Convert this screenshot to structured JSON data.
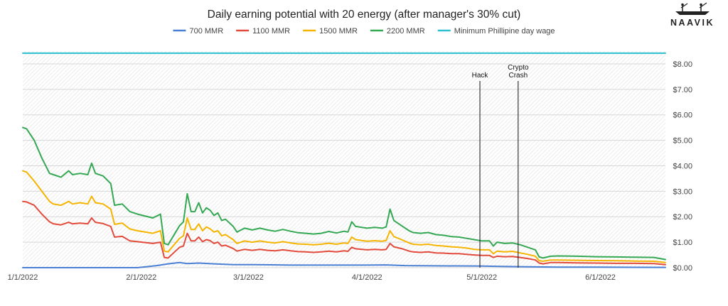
{
  "brand": {
    "name": "NAAVIK",
    "color": "#222222"
  },
  "chart_data": {
    "type": "line",
    "title": "Daily earning potential with 20 energy (after manager's 30% cut)",
    "xlabel": "",
    "ylabel": "",
    "x_tick_labels": [
      "1/1/2022",
      "2/1/2022",
      "3/1/2022",
      "4/1/2022",
      "5/1/2022",
      "6/1/2022"
    ],
    "x_tick_days": [
      0,
      31,
      59,
      90,
      120,
      151
    ],
    "x_range_days": [
      0,
      168
    ],
    "ylim": [
      0,
      8.5
    ],
    "y_ticks": [
      0,
      1,
      2,
      3,
      4,
      5,
      6,
      7,
      8
    ],
    "y_tick_labels": [
      "$0.00",
      "$1.00",
      "$2.00",
      "$3.00",
      "$4.00",
      "$5.00",
      "$6.00",
      "$7.00",
      "$8.00"
    ],
    "y_axis_position": "right",
    "legend_position": "top",
    "grid": true,
    "series": [
      {
        "name": "700 MMR",
        "color": "#4a7fd4",
        "points": [
          [
            0,
            0
          ],
          [
            30,
            0
          ],
          [
            32,
            0.03
          ],
          [
            35,
            0.08
          ],
          [
            38,
            0.15
          ],
          [
            41,
            0.2
          ],
          [
            43,
            0.16
          ],
          [
            46,
            0.18
          ],
          [
            50,
            0.15
          ],
          [
            55,
            0.12
          ],
          [
            60,
            0.12
          ],
          [
            70,
            0.1
          ],
          [
            80,
            0.1
          ],
          [
            90,
            0.1
          ],
          [
            95,
            0.11
          ],
          [
            100,
            0.08
          ],
          [
            110,
            0.07
          ],
          [
            120,
            0.06
          ],
          [
            125,
            0.05
          ],
          [
            130,
            0.04
          ],
          [
            134,
            0.03
          ],
          [
            140,
            0.02
          ],
          [
            150,
            0.02
          ],
          [
            168,
            0.01
          ]
        ]
      },
      {
        "name": "1100 MMR",
        "color": "#e24b3b",
        "points": [
          [
            0,
            2.6
          ],
          [
            1,
            2.58
          ],
          [
            3,
            2.45
          ],
          [
            5,
            2.1
          ],
          [
            7,
            1.8
          ],
          [
            8,
            1.72
          ],
          [
            10,
            1.68
          ],
          [
            12,
            1.78
          ],
          [
            13,
            1.72
          ],
          [
            15,
            1.75
          ],
          [
            17,
            1.72
          ],
          [
            18,
            1.95
          ],
          [
            19,
            1.78
          ],
          [
            21,
            1.73
          ],
          [
            23,
            1.62
          ],
          [
            24,
            1.2
          ],
          [
            26,
            1.23
          ],
          [
            28,
            1.05
          ],
          [
            30,
            1.02
          ],
          [
            34,
            0.95
          ],
          [
            36,
            1.0
          ],
          [
            37,
            0.4
          ],
          [
            38,
            0.38
          ],
          [
            39,
            0.52
          ],
          [
            41,
            0.8
          ],
          [
            42,
            0.85
          ],
          [
            43,
            1.35
          ],
          [
            44,
            1.05
          ],
          [
            45,
            1.05
          ],
          [
            46,
            1.2
          ],
          [
            47,
            1.02
          ],
          [
            48,
            1.1
          ],
          [
            49,
            1.06
          ],
          [
            50,
            0.95
          ],
          [
            51,
            1.0
          ],
          [
            52,
            0.85
          ],
          [
            53,
            0.88
          ],
          [
            55,
            0.75
          ],
          [
            56,
            0.65
          ],
          [
            58,
            0.72
          ],
          [
            60,
            0.68
          ],
          [
            62,
            0.72
          ],
          [
            64,
            0.68
          ],
          [
            66,
            0.66
          ],
          [
            68,
            0.7
          ],
          [
            70,
            0.66
          ],
          [
            72,
            0.63
          ],
          [
            74,
            0.62
          ],
          [
            76,
            0.6
          ],
          [
            78,
            0.62
          ],
          [
            80,
            0.65
          ],
          [
            82,
            0.62
          ],
          [
            84,
            0.66
          ],
          [
            85,
            0.64
          ],
          [
            86,
            0.8
          ],
          [
            87,
            0.74
          ],
          [
            90,
            0.7
          ],
          [
            92,
            0.72
          ],
          [
            94,
            0.7
          ],
          [
            95,
            0.72
          ],
          [
            96,
            0.95
          ],
          [
            97,
            0.82
          ],
          [
            99,
            0.75
          ],
          [
            101,
            0.65
          ],
          [
            102,
            0.62
          ],
          [
            104,
            0.6
          ],
          [
            106,
            0.62
          ],
          [
            108,
            0.58
          ],
          [
            110,
            0.57
          ],
          [
            112,
            0.55
          ],
          [
            114,
            0.55
          ],
          [
            116,
            0.52
          ],
          [
            118,
            0.5
          ],
          [
            120,
            0.48
          ],
          [
            122,
            0.48
          ],
          [
            123,
            0.4
          ],
          [
            124,
            0.45
          ],
          [
            126,
            0.43
          ],
          [
            128,
            0.44
          ],
          [
            130,
            0.4
          ],
          [
            132,
            0.36
          ],
          [
            134,
            0.3
          ],
          [
            135,
            0.18
          ],
          [
            136,
            0.15
          ],
          [
            138,
            0.2
          ],
          [
            140,
            0.2
          ],
          [
            145,
            0.19
          ],
          [
            150,
            0.18
          ],
          [
            155,
            0.17
          ],
          [
            160,
            0.17
          ],
          [
            165,
            0.16
          ],
          [
            168,
            0.12
          ]
        ]
      },
      {
        "name": "1500 MMR",
        "color": "#f4b400",
        "points": [
          [
            0,
            3.8
          ],
          [
            1,
            3.75
          ],
          [
            3,
            3.4
          ],
          [
            5,
            3.0
          ],
          [
            7,
            2.6
          ],
          [
            8,
            2.5
          ],
          [
            10,
            2.45
          ],
          [
            12,
            2.6
          ],
          [
            13,
            2.5
          ],
          [
            15,
            2.55
          ],
          [
            17,
            2.5
          ],
          [
            18,
            2.8
          ],
          [
            19,
            2.55
          ],
          [
            21,
            2.5
          ],
          [
            23,
            2.3
          ],
          [
            24,
            1.7
          ],
          [
            26,
            1.75
          ],
          [
            28,
            1.52
          ],
          [
            30,
            1.45
          ],
          [
            34,
            1.35
          ],
          [
            36,
            1.45
          ],
          [
            37,
            0.65
          ],
          [
            38,
            0.62
          ],
          [
            39,
            0.8
          ],
          [
            41,
            1.15
          ],
          [
            42,
            1.25
          ],
          [
            43,
            1.95
          ],
          [
            44,
            1.5
          ],
          [
            45,
            1.5
          ],
          [
            46,
            1.72
          ],
          [
            47,
            1.45
          ],
          [
            48,
            1.6
          ],
          [
            49,
            1.52
          ],
          [
            50,
            1.4
          ],
          [
            51,
            1.45
          ],
          [
            52,
            1.25
          ],
          [
            53,
            1.3
          ],
          [
            55,
            1.1
          ],
          [
            56,
            0.95
          ],
          [
            58,
            1.05
          ],
          [
            60,
            1.0
          ],
          [
            62,
            1.05
          ],
          [
            64,
            1.0
          ],
          [
            66,
            0.97
          ],
          [
            68,
            1.02
          ],
          [
            70,
            0.97
          ],
          [
            72,
            0.93
          ],
          [
            74,
            0.92
          ],
          [
            76,
            0.9
          ],
          [
            78,
            0.92
          ],
          [
            80,
            0.96
          ],
          [
            82,
            0.92
          ],
          [
            84,
            0.97
          ],
          [
            85,
            0.95
          ],
          [
            86,
            1.2
          ],
          [
            87,
            1.1
          ],
          [
            90,
            1.04
          ],
          [
            92,
            1.06
          ],
          [
            94,
            1.04
          ],
          [
            95,
            1.07
          ],
          [
            96,
            1.45
          ],
          [
            97,
            1.22
          ],
          [
            99,
            1.1
          ],
          [
            101,
            0.97
          ],
          [
            102,
            0.92
          ],
          [
            104,
            0.9
          ],
          [
            106,
            0.92
          ],
          [
            108,
            0.87
          ],
          [
            110,
            0.85
          ],
          [
            112,
            0.82
          ],
          [
            114,
            0.8
          ],
          [
            116,
            0.77
          ],
          [
            118,
            0.72
          ],
          [
            120,
            0.7
          ],
          [
            122,
            0.7
          ],
          [
            123,
            0.55
          ],
          [
            124,
            0.65
          ],
          [
            126,
            0.62
          ],
          [
            128,
            0.64
          ],
          [
            130,
            0.58
          ],
          [
            132,
            0.52
          ],
          [
            134,
            0.45
          ],
          [
            135,
            0.27
          ],
          [
            136,
            0.25
          ],
          [
            138,
            0.3
          ],
          [
            140,
            0.3
          ],
          [
            145,
            0.29
          ],
          [
            150,
            0.28
          ],
          [
            155,
            0.27
          ],
          [
            160,
            0.26
          ],
          [
            165,
            0.25
          ],
          [
            168,
            0.2
          ]
        ]
      },
      {
        "name": "2200 MMR",
        "color": "#34a853",
        "points": [
          [
            0,
            5.5
          ],
          [
            1,
            5.45
          ],
          [
            3,
            5.0
          ],
          [
            5,
            4.3
          ],
          [
            7,
            3.7
          ],
          [
            8,
            3.65
          ],
          [
            10,
            3.55
          ],
          [
            12,
            3.8
          ],
          [
            13,
            3.65
          ],
          [
            15,
            3.7
          ],
          [
            17,
            3.65
          ],
          [
            18,
            4.1
          ],
          [
            19,
            3.7
          ],
          [
            21,
            3.6
          ],
          [
            23,
            3.3
          ],
          [
            24,
            2.45
          ],
          [
            26,
            2.5
          ],
          [
            28,
            2.2
          ],
          [
            30,
            2.1
          ],
          [
            34,
            1.95
          ],
          [
            36,
            2.1
          ],
          [
            37,
            0.95
          ],
          [
            38,
            0.9
          ],
          [
            39,
            1.15
          ],
          [
            41,
            1.65
          ],
          [
            42,
            1.8
          ],
          [
            43,
            2.9
          ],
          [
            44,
            2.2
          ],
          [
            45,
            2.2
          ],
          [
            46,
            2.55
          ],
          [
            47,
            2.15
          ],
          [
            48,
            2.35
          ],
          [
            49,
            2.25
          ],
          [
            50,
            2.05
          ],
          [
            51,
            2.15
          ],
          [
            52,
            1.85
          ],
          [
            53,
            1.9
          ],
          [
            55,
            1.62
          ],
          [
            56,
            1.4
          ],
          [
            58,
            1.55
          ],
          [
            60,
            1.48
          ],
          [
            62,
            1.55
          ],
          [
            64,
            1.48
          ],
          [
            66,
            1.43
          ],
          [
            68,
            1.5
          ],
          [
            70,
            1.43
          ],
          [
            72,
            1.37
          ],
          [
            74,
            1.35
          ],
          [
            76,
            1.32
          ],
          [
            78,
            1.35
          ],
          [
            80,
            1.42
          ],
          [
            82,
            1.36
          ],
          [
            84,
            1.43
          ],
          [
            85,
            1.4
          ],
          [
            86,
            1.8
          ],
          [
            87,
            1.62
          ],
          [
            90,
            1.55
          ],
          [
            92,
            1.58
          ],
          [
            94,
            1.55
          ],
          [
            95,
            1.6
          ],
          [
            96,
            2.3
          ],
          [
            97,
            1.85
          ],
          [
            99,
            1.65
          ],
          [
            101,
            1.45
          ],
          [
            102,
            1.38
          ],
          [
            104,
            1.35
          ],
          [
            106,
            1.38
          ],
          [
            108,
            1.3
          ],
          [
            110,
            1.27
          ],
          [
            112,
            1.22
          ],
          [
            114,
            1.2
          ],
          [
            116,
            1.15
          ],
          [
            118,
            1.1
          ],
          [
            120,
            1.05
          ],
          [
            122,
            1.05
          ],
          [
            123,
            0.85
          ],
          [
            124,
            1.0
          ],
          [
            126,
            0.95
          ],
          [
            128,
            0.97
          ],
          [
            130,
            0.9
          ],
          [
            132,
            0.8
          ],
          [
            134,
            0.7
          ],
          [
            135,
            0.42
          ],
          [
            136,
            0.38
          ],
          [
            138,
            0.45
          ],
          [
            140,
            0.46
          ],
          [
            145,
            0.45
          ],
          [
            150,
            0.43
          ],
          [
            155,
            0.42
          ],
          [
            160,
            0.41
          ],
          [
            165,
            0.4
          ],
          [
            168,
            0.32
          ]
        ]
      },
      {
        "name": "Minimum Phillipine day wage",
        "color": "#2bbfcf",
        "points": [
          [
            0,
            8.42
          ],
          [
            168,
            8.42
          ]
        ]
      }
    ],
    "annotations": [
      {
        "label_lines": [
          "Hack"
        ],
        "day": 119.5
      },
      {
        "label_lines": [
          "Crypto",
          "Crash"
        ],
        "day": 129.5
      }
    ]
  }
}
